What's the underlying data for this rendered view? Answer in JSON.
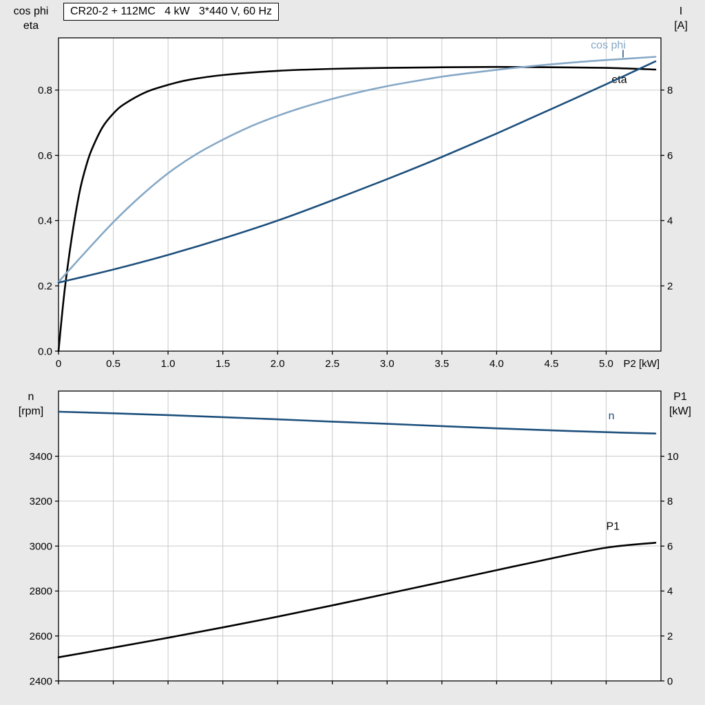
{
  "page": {
    "background": "#e9e9e9",
    "plot_background": "#ffffff",
    "grid_color": "#c9c9c9",
    "axis_color": "#000000"
  },
  "charts": [
    {
      "name": "motor-performance",
      "type": "line",
      "title": "CR20-2 + 112MC   4 kW   3*440 V, 60 Hz",
      "x_label": "P2 [kW]",
      "xlim": [
        0,
        5.5
      ],
      "x_ticks": [
        0,
        0.5,
        1,
        1.5,
        2,
        2.5,
        3,
        3.5,
        4,
        4.5,
        5
      ],
      "x_tick_labels": [
        "0",
        "0.5",
        "1.0",
        "1.5",
        "2.0",
        "2.5",
        "3.0",
        "3.5",
        "4.0",
        "4.5",
        "5.0"
      ],
      "show_x_tick_labels": true,
      "left_axis": {
        "corner_label": "cos phi\neta",
        "lim": [
          0,
          0.96
        ],
        "ticks": [
          0,
          0.2,
          0.4,
          0.6,
          0.8
        ],
        "tick_labels": [
          "0.0",
          "0.2",
          "0.4",
          "0.6",
          "0.8"
        ]
      },
      "right_axis": {
        "corner_label": "I\n[A]",
        "lim": [
          0,
          9.6
        ],
        "ticks": [
          2,
          4,
          6,
          8
        ],
        "tick_labels": [
          "2",
          "4",
          "6",
          "8"
        ]
      },
      "series": [
        {
          "name": "eta",
          "axis": "left",
          "color": "#000000",
          "label": {
            "text": "eta",
            "x": 5.05,
            "y": 0.822
          },
          "points": [
            [
              0,
              0
            ],
            [
              0.05,
              0.17
            ],
            [
              0.1,
              0.3
            ],
            [
              0.15,
              0.41
            ],
            [
              0.2,
              0.5
            ],
            [
              0.25,
              0.565
            ],
            [
              0.3,
              0.615
            ],
            [
              0.4,
              0.685
            ],
            [
              0.5,
              0.728
            ],
            [
              0.6,
              0.757
            ],
            [
              0.8,
              0.794
            ],
            [
              1.0,
              0.816
            ],
            [
              1.2,
              0.832
            ],
            [
              1.5,
              0.846
            ],
            [
              2.0,
              0.859
            ],
            [
              2.5,
              0.865
            ],
            [
              3.0,
              0.868
            ],
            [
              3.5,
              0.87
            ],
            [
              4.0,
              0.871
            ],
            [
              4.5,
              0.87
            ],
            [
              5.0,
              0.868
            ],
            [
              5.45,
              0.863
            ]
          ]
        },
        {
          "name": "cos phi",
          "axis": "left",
          "color": "#85a8c6",
          "label": {
            "text": "cos phi",
            "x": 4.86,
            "y": 0.927
          },
          "points": [
            [
              0,
              0.212
            ],
            [
              0.25,
              0.305
            ],
            [
              0.5,
              0.395
            ],
            [
              0.75,
              0.475
            ],
            [
              1.0,
              0.545
            ],
            [
              1.25,
              0.602
            ],
            [
              1.5,
              0.648
            ],
            [
              1.75,
              0.688
            ],
            [
              2.0,
              0.721
            ],
            [
              2.25,
              0.749
            ],
            [
              2.5,
              0.773
            ],
            [
              2.75,
              0.794
            ],
            [
              3.0,
              0.812
            ],
            [
              3.25,
              0.827
            ],
            [
              3.5,
              0.841
            ],
            [
              3.75,
              0.852
            ],
            [
              4.0,
              0.862
            ],
            [
              4.25,
              0.871
            ],
            [
              4.5,
              0.879
            ],
            [
              4.75,
              0.886
            ],
            [
              5.0,
              0.892
            ],
            [
              5.45,
              0.902
            ]
          ]
        },
        {
          "name": "I",
          "axis": "right",
          "color": "#1c4f7c",
          "label": {
            "text": "I",
            "x": 5.14,
            "y": 9.0
          },
          "points": [
            [
              0,
              2.1
            ],
            [
              0.5,
              2.5
            ],
            [
              1.0,
              2.95
            ],
            [
              1.5,
              3.45
            ],
            [
              2.0,
              4.0
            ],
            [
              2.5,
              4.62
            ],
            [
              3.0,
              5.27
            ],
            [
              3.5,
              5.95
            ],
            [
              4.0,
              6.67
            ],
            [
              4.5,
              7.42
            ],
            [
              5.0,
              8.18
            ],
            [
              5.45,
              8.88
            ]
          ]
        }
      ]
    },
    {
      "name": "speed-and-input-power",
      "type": "line",
      "title": "",
      "x_label": "",
      "xlim": [
        0,
        5.5
      ],
      "x_ticks": [
        0,
        0.5,
        1,
        1.5,
        2,
        2.5,
        3,
        3.5,
        4,
        4.5,
        5
      ],
      "x_tick_labels": [],
      "show_x_tick_labels": false,
      "left_axis": {
        "corner_label": "n\n[rpm]",
        "lim": [
          2400,
          3690
        ],
        "ticks": [
          2400,
          2600,
          2800,
          3000,
          3200,
          3400
        ],
        "tick_labels": [
          "2400",
          "2600",
          "2800",
          "3000",
          "3200",
          "3400"
        ]
      },
      "right_axis": {
        "corner_label": "P1\n[kW]",
        "lim": [
          0,
          12.9
        ],
        "ticks": [
          0,
          2,
          4,
          6,
          8,
          10
        ],
        "tick_labels": [
          "0",
          "2",
          "4",
          "6",
          "8",
          "10"
        ]
      },
      "series": [
        {
          "name": "n",
          "axis": "left",
          "color": "#1c4f7c",
          "label": {
            "text": "n",
            "x": 5.02,
            "y": 3565
          },
          "points": [
            [
              0,
              3598
            ],
            [
              0.5,
              3591
            ],
            [
              1.0,
              3583
            ],
            [
              1.5,
              3574
            ],
            [
              2.0,
              3564
            ],
            [
              2.5,
              3554
            ],
            [
              3.0,
              3544
            ],
            [
              3.5,
              3534
            ],
            [
              4.0,
              3524
            ],
            [
              4.5,
              3515
            ],
            [
              5.0,
              3507
            ],
            [
              5.45,
              3501
            ]
          ]
        },
        {
          "name": "P1",
          "axis": "right",
          "color": "#000000",
          "label": {
            "text": "P1",
            "x": 5.0,
            "y": 6.72
          },
          "points": [
            [
              0,
              1.05
            ],
            [
              0.5,
              1.48
            ],
            [
              1.0,
              1.92
            ],
            [
              1.5,
              2.38
            ],
            [
              2.0,
              2.86
            ],
            [
              2.5,
              3.36
            ],
            [
              3.0,
              3.88
            ],
            [
              3.5,
              4.4
            ],
            [
              4.0,
              4.93
            ],
            [
              4.5,
              5.45
            ],
            [
              5.0,
              5.93
            ],
            [
              5.45,
              6.15
            ]
          ]
        }
      ]
    }
  ]
}
